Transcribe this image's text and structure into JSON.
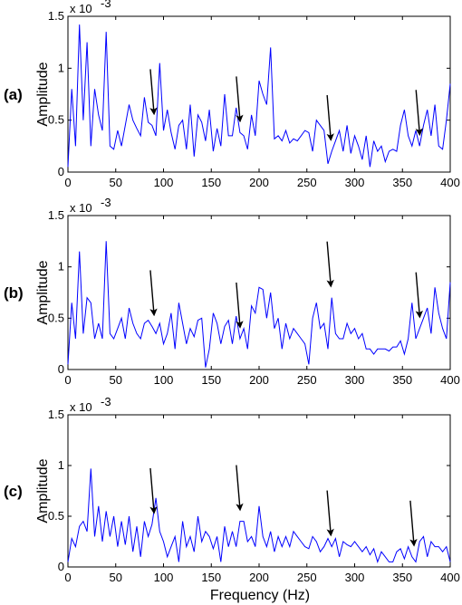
{
  "figure": {
    "xlabel": "Frequency (Hz)",
    "x_ticks": [
      "0",
      "50",
      "100",
      "150",
      "200",
      "250",
      "300",
      "350",
      "400"
    ],
    "y_ticks": [
      "0",
      "0.5",
      "1",
      "1.5"
    ],
    "y_exponent": "x 10",
    "y_exponent_power": "-3",
    "line_color": "#0000ff"
  },
  "chart_data": [
    {
      "type": "line",
      "panel_label": "(a)",
      "ylabel": "Amplitude",
      "xlim": [
        0,
        400
      ],
      "ylim": [
        0,
        1.5
      ],
      "y_scale_note": "x 10^-3",
      "grid": false,
      "arrows_at_x": [
        90,
        180,
        275,
        368
      ],
      "series": [
        {
          "x": [
            0,
            4,
            8,
            12,
            16,
            20,
            24,
            28,
            32,
            36,
            40,
            44,
            48,
            52,
            56,
            60,
            64,
            68,
            72,
            76,
            80,
            84,
            88,
            92,
            96,
            100,
            104,
            108,
            112,
            116,
            120,
            124,
            128,
            132,
            136,
            140,
            144,
            148,
            152,
            156,
            160,
            164,
            168,
            172,
            176,
            180,
            184,
            188,
            192,
            196,
            200,
            204,
            208,
            212,
            216,
            220,
            224,
            228,
            232,
            236,
            240,
            244,
            248,
            252,
            256,
            260,
            264,
            268,
            272,
            276,
            280,
            284,
            288,
            292,
            296,
            300,
            304,
            308,
            312,
            316,
            320,
            324,
            328,
            332,
            336,
            340,
            344,
            348,
            352,
            356,
            360,
            364,
            368,
            372,
            376,
            380,
            384,
            388,
            392,
            396,
            400
          ],
          "values": [
            0.05,
            0.8,
            0.25,
            1.42,
            0.5,
            1.25,
            0.25,
            0.8,
            0.55,
            0.4,
            1.35,
            0.25,
            0.22,
            0.4,
            0.25,
            0.45,
            0.65,
            0.5,
            0.42,
            0.35,
            0.72,
            0.48,
            0.45,
            0.35,
            1.05,
            0.4,
            0.6,
            0.38,
            0.22,
            0.45,
            0.5,
            0.22,
            0.65,
            0.15,
            0.55,
            0.48,
            0.3,
            0.6,
            0.2,
            0.42,
            0.25,
            0.75,
            0.35,
            0.35,
            0.62,
            0.38,
            0.35,
            0.22,
            0.55,
            0.35,
            0.88,
            0.75,
            0.65,
            1.2,
            0.32,
            0.35,
            0.3,
            0.4,
            0.28,
            0.32,
            0.3,
            0.35,
            0.4,
            0.38,
            0.2,
            0.5,
            0.45,
            0.4,
            0.08,
            0.2,
            0.3,
            0.4,
            0.2,
            0.45,
            0.18,
            0.35,
            0.25,
            0.12,
            0.35,
            0.05,
            0.3,
            0.2,
            0.25,
            0.1,
            0.2,
            0.22,
            0.2,
            0.45,
            0.6,
            0.35,
            0.25,
            0.4,
            0.25,
            0.45,
            0.6,
            0.35,
            0.65,
            0.25,
            0.22,
            0.5,
            0.85
          ]
        }
      ]
    },
    {
      "type": "line",
      "panel_label": "(b)",
      "ylabel": "Amplitude",
      "xlim": [
        0,
        400
      ],
      "ylim": [
        0,
        1.5
      ],
      "y_scale_note": "x 10^-3",
      "grid": false,
      "arrows_at_x": [
        90,
        180,
        275,
        368
      ],
      "series": [
        {
          "x": [
            0,
            4,
            8,
            12,
            16,
            20,
            24,
            28,
            32,
            36,
            40,
            44,
            48,
            52,
            56,
            60,
            64,
            68,
            72,
            76,
            80,
            84,
            88,
            92,
            96,
            100,
            104,
            108,
            112,
            116,
            120,
            124,
            128,
            132,
            136,
            140,
            144,
            148,
            152,
            156,
            160,
            164,
            168,
            172,
            176,
            180,
            184,
            188,
            192,
            196,
            200,
            204,
            208,
            212,
            216,
            220,
            224,
            228,
            232,
            236,
            240,
            244,
            248,
            252,
            256,
            260,
            264,
            268,
            272,
            276,
            280,
            284,
            288,
            292,
            296,
            300,
            304,
            308,
            312,
            316,
            320,
            324,
            328,
            332,
            336,
            340,
            344,
            348,
            352,
            356,
            360,
            364,
            368,
            372,
            376,
            380,
            384,
            388,
            392,
            396,
            400
          ],
          "values": [
            0.05,
            0.65,
            0.3,
            1.15,
            0.35,
            0.7,
            0.65,
            0.3,
            0.45,
            0.3,
            1.25,
            0.35,
            0.3,
            0.4,
            0.5,
            0.3,
            0.6,
            0.45,
            0.35,
            0.3,
            0.45,
            0.48,
            0.42,
            0.35,
            0.45,
            0.25,
            0.35,
            0.55,
            0.2,
            0.65,
            0.45,
            0.25,
            0.4,
            0.32,
            0.48,
            0.5,
            0.02,
            0.2,
            0.55,
            0.45,
            0.25,
            0.42,
            0.48,
            0.25,
            0.52,
            0.3,
            0.4,
            0.2,
            0.62,
            0.55,
            0.8,
            0.78,
            0.5,
            0.75,
            0.4,
            0.5,
            0.2,
            0.45,
            0.3,
            0.4,
            0.35,
            0.3,
            0.25,
            0.05,
            0.5,
            0.65,
            0.4,
            0.45,
            0.2,
            0.7,
            0.35,
            0.3,
            0.3,
            0.45,
            0.35,
            0.4,
            0.3,
            0.35,
            0.2,
            0.2,
            0.15,
            0.2,
            0.2,
            0.2,
            0.18,
            0.22,
            0.22,
            0.28,
            0.15,
            0.3,
            0.65,
            0.3,
            0.4,
            0.5,
            0.6,
            0.35,
            0.8,
            0.55,
            0.4,
            0.3,
            0.85
          ]
        }
      ]
    },
    {
      "type": "line",
      "panel_label": "(c)",
      "ylabel": "Amplitude",
      "xlabel": "Frequency (Hz)",
      "xlim": [
        0,
        400
      ],
      "ylim": [
        0,
        1.5
      ],
      "y_scale_note": "x 10^-3",
      "grid": false,
      "arrows_at_x": [
        90,
        180,
        275,
        362
      ],
      "series": [
        {
          "x": [
            0,
            4,
            8,
            12,
            16,
            20,
            24,
            28,
            32,
            36,
            40,
            44,
            48,
            52,
            56,
            60,
            64,
            68,
            72,
            76,
            80,
            84,
            88,
            92,
            96,
            100,
            104,
            108,
            112,
            116,
            120,
            124,
            128,
            132,
            136,
            140,
            144,
            148,
            152,
            156,
            160,
            164,
            168,
            172,
            176,
            180,
            184,
            188,
            192,
            196,
            200,
            204,
            208,
            212,
            216,
            220,
            224,
            228,
            232,
            236,
            240,
            244,
            248,
            252,
            256,
            260,
            264,
            268,
            272,
            276,
            280,
            284,
            288,
            292,
            296,
            300,
            304,
            308,
            312,
            316,
            320,
            324,
            328,
            332,
            336,
            340,
            344,
            348,
            352,
            356,
            360,
            364,
            368,
            372,
            376,
            380,
            384,
            388,
            392,
            396,
            400
          ],
          "values": [
            0.05,
            0.28,
            0.2,
            0.4,
            0.45,
            0.35,
            0.97,
            0.3,
            0.6,
            0.25,
            0.55,
            0.3,
            0.5,
            0.2,
            0.45,
            0.22,
            0.5,
            0.15,
            0.4,
            0.1,
            0.45,
            0.3,
            0.42,
            0.68,
            0.35,
            0.25,
            0.1,
            0.2,
            0.3,
            0.05,
            0.45,
            0.2,
            0.3,
            0.15,
            0.5,
            0.25,
            0.35,
            0.3,
            0.18,
            0.3,
            0.05,
            0.4,
            0.2,
            0.35,
            0.2,
            0.45,
            0.45,
            0.25,
            0.3,
            0.2,
            0.6,
            0.3,
            0.2,
            0.35,
            0.15,
            0.3,
            0.2,
            0.3,
            0.2,
            0.35,
            0.3,
            0.25,
            0.2,
            0.18,
            0.3,
            0.25,
            0.15,
            0.2,
            0.28,
            0.2,
            0.28,
            0.1,
            0.25,
            0.22,
            0.2,
            0.25,
            0.2,
            0.15,
            0.2,
            0.12,
            0.18,
            0.05,
            0.15,
            0.1,
            0.05,
            0.05,
            0.15,
            0.18,
            0.08,
            0.2,
            0.1,
            0.05,
            0.25,
            0.3,
            0.1,
            0.25,
            0.2,
            0.2,
            0.15,
            0.2,
            0.05
          ]
        }
      ]
    }
  ]
}
